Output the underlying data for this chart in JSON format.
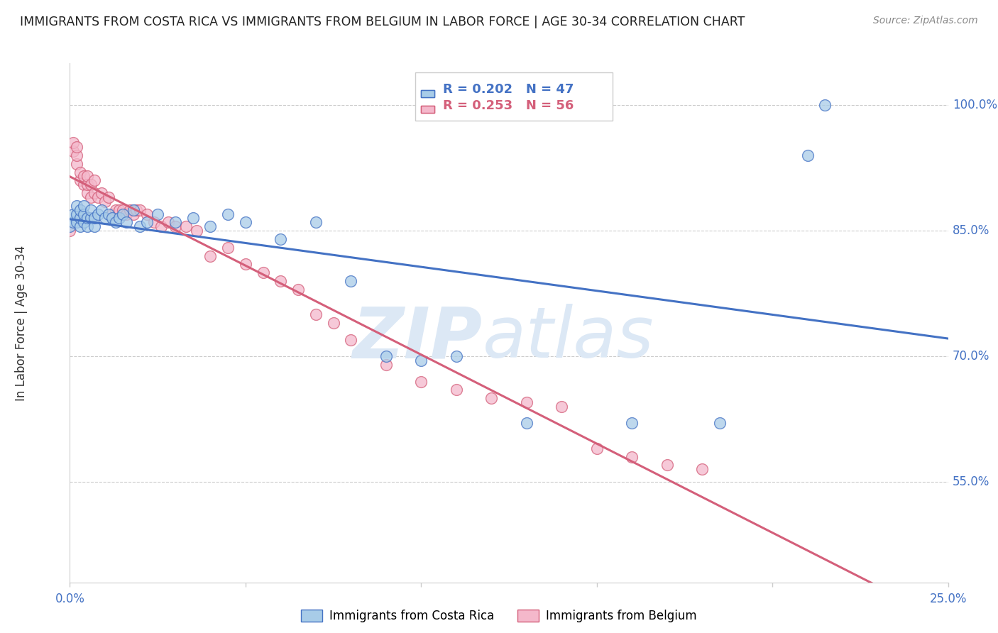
{
  "title": "IMMIGRANTS FROM COSTA RICA VS IMMIGRANTS FROM BELGIUM IN LABOR FORCE | AGE 30-34 CORRELATION CHART",
  "source": "Source: ZipAtlas.com",
  "ylabel": "In Labor Force | Age 30-34",
  "yticks": [
    "55.0%",
    "70.0%",
    "85.0%",
    "100.0%"
  ],
  "ytick_vals": [
    0.55,
    0.7,
    0.85,
    1.0
  ],
  "xlim": [
    0.0,
    0.25
  ],
  "ylim": [
    0.43,
    1.05
  ],
  "legend_r1": "R = 0.202",
  "legend_n1": "N = 47",
  "legend_r2": "R = 0.253",
  "legend_n2": "N = 56",
  "color_blue": "#a8cce8",
  "color_pink": "#f4b8cb",
  "line_blue": "#4472c4",
  "line_pink": "#d45f7a",
  "title_color": "#222222",
  "axis_color": "#4472c4",
  "watermark_zip": "ZIP",
  "watermark_atlas": "atlas",
  "watermark_color": "#dce8f5",
  "costa_rica_x": [
    0.0,
    0.001,
    0.001,
    0.002,
    0.002,
    0.002,
    0.003,
    0.003,
    0.003,
    0.004,
    0.004,
    0.004,
    0.005,
    0.005,
    0.006,
    0.006,
    0.007,
    0.007,
    0.008,
    0.009,
    0.01,
    0.011,
    0.012,
    0.013,
    0.014,
    0.015,
    0.016,
    0.018,
    0.02,
    0.022,
    0.025,
    0.03,
    0.035,
    0.04,
    0.045,
    0.05,
    0.06,
    0.07,
    0.08,
    0.09,
    0.1,
    0.11,
    0.13,
    0.16,
    0.185,
    0.21,
    0.215
  ],
  "costa_rica_y": [
    0.855,
    0.86,
    0.87,
    0.86,
    0.87,
    0.88,
    0.855,
    0.865,
    0.875,
    0.86,
    0.87,
    0.88,
    0.855,
    0.865,
    0.865,
    0.875,
    0.855,
    0.865,
    0.87,
    0.875,
    0.865,
    0.87,
    0.865,
    0.86,
    0.865,
    0.87,
    0.86,
    0.875,
    0.855,
    0.86,
    0.87,
    0.86,
    0.865,
    0.855,
    0.87,
    0.86,
    0.84,
    0.86,
    0.79,
    0.7,
    0.695,
    0.7,
    0.62,
    0.62,
    0.62,
    0.94,
    1.0
  ],
  "belgium_x": [
    0.0,
    0.001,
    0.001,
    0.002,
    0.002,
    0.002,
    0.003,
    0.003,
    0.004,
    0.004,
    0.005,
    0.005,
    0.005,
    0.006,
    0.006,
    0.007,
    0.007,
    0.008,
    0.009,
    0.01,
    0.011,
    0.012,
    0.013,
    0.014,
    0.015,
    0.016,
    0.017,
    0.018,
    0.019,
    0.02,
    0.022,
    0.024,
    0.026,
    0.028,
    0.03,
    0.033,
    0.036,
    0.04,
    0.045,
    0.05,
    0.055,
    0.06,
    0.065,
    0.07,
    0.075,
    0.08,
    0.09,
    0.1,
    0.11,
    0.12,
    0.13,
    0.14,
    0.15,
    0.16,
    0.17,
    0.18
  ],
  "belgium_y": [
    0.85,
    0.945,
    0.955,
    0.93,
    0.94,
    0.95,
    0.91,
    0.92,
    0.905,
    0.915,
    0.895,
    0.905,
    0.915,
    0.89,
    0.905,
    0.895,
    0.91,
    0.89,
    0.895,
    0.885,
    0.89,
    0.87,
    0.875,
    0.875,
    0.875,
    0.87,
    0.875,
    0.87,
    0.875,
    0.875,
    0.87,
    0.86,
    0.855,
    0.86,
    0.855,
    0.855,
    0.85,
    0.82,
    0.83,
    0.81,
    0.8,
    0.79,
    0.78,
    0.75,
    0.74,
    0.72,
    0.69,
    0.67,
    0.66,
    0.65,
    0.645,
    0.64,
    0.59,
    0.58,
    0.57,
    0.565
  ]
}
